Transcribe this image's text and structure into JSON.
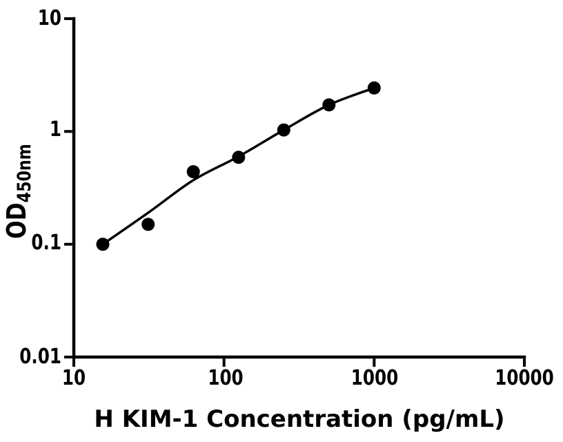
{
  "chart_data": {
    "type": "scatter",
    "title": "",
    "xlabel": "H KIM-1 Concentration (pg/mL)",
    "ylabel": "OD450nm",
    "ylabel_main": "OD",
    "ylabel_sub": "450nm",
    "xscale": "log",
    "yscale": "log",
    "xlim": [
      10,
      10000
    ],
    "ylim": [
      0.01,
      10
    ],
    "grid": false,
    "legend": false,
    "x_ticks": [
      10,
      100,
      1000,
      10000
    ],
    "x_tick_labels": [
      "10",
      "100",
      "1000",
      "10000"
    ],
    "y_ticks": [
      10,
      1,
      0.1,
      0.01
    ],
    "y_tick_labels": [
      "10",
      "1",
      "0.1",
      "0.01"
    ],
    "axis_color": "#000000",
    "background_color": "#ffffff",
    "series": [
      {
        "marker": "filled-circle",
        "color": "#000000",
        "x": [
          15.6,
          31.25,
          62.5,
          125,
          250,
          500,
          1000
        ],
        "y": [
          0.1,
          0.15,
          0.44,
          0.59,
          1.03,
          1.72,
          2.43
        ]
      }
    ],
    "fit_curve": {
      "color": "#000000",
      "x": [
        15.6,
        31.25,
        62.5,
        125,
        250,
        500,
        1000
      ],
      "y": [
        0.1,
        0.19,
        0.37,
        0.6,
        1.03,
        1.72,
        2.43
      ]
    }
  }
}
